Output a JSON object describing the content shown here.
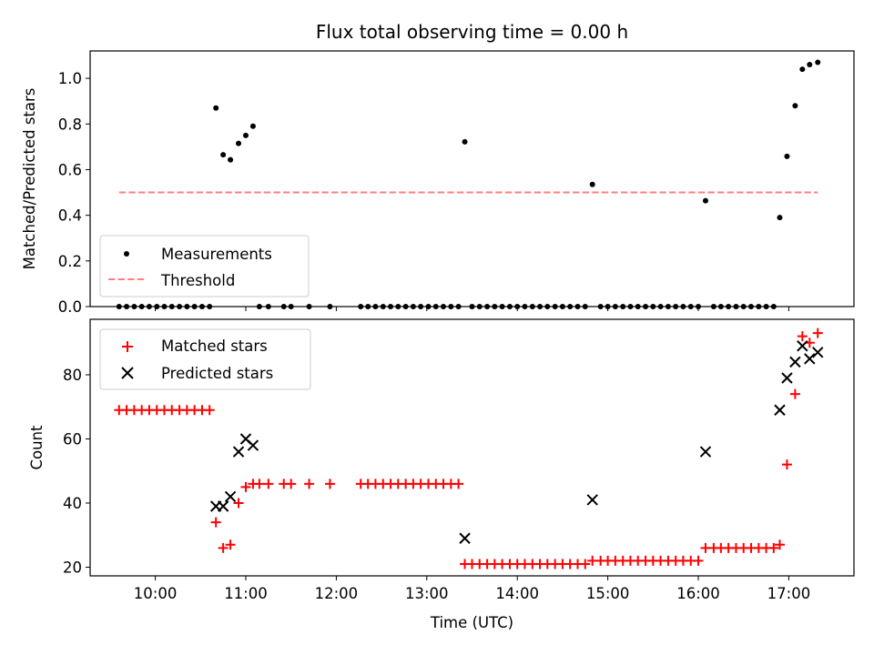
{
  "chart_data": [
    {
      "type": "scatter",
      "title": "Flux total observing time = 0.00 h",
      "xlabel": "",
      "ylabel": "Matched/Predicted stars",
      "xlim": [
        9.28,
        17.72
      ],
      "ylim": [
        0.0,
        1.12
      ],
      "yticks": [
        0.0,
        0.2,
        0.4,
        0.6,
        0.8,
        1.0
      ],
      "ytick_labels": [
        "0.0",
        "0.2",
        "0.4",
        "0.6",
        "0.8",
        "1.0"
      ],
      "legend_position": "lower-left",
      "series": [
        {
          "name": "Measurements",
          "marker": "dot",
          "color": "#000000",
          "points": [
            [
              9.6,
              0
            ],
            [
              9.683,
              0
            ],
            [
              9.767,
              0
            ],
            [
              9.85,
              0
            ],
            [
              9.933,
              0
            ],
            [
              10.017,
              0
            ],
            [
              10.1,
              0
            ],
            [
              10.183,
              0
            ],
            [
              10.267,
              0
            ],
            [
              10.35,
              0
            ],
            [
              10.433,
              0
            ],
            [
              10.517,
              0
            ],
            [
              10.6,
              0
            ],
            [
              10.67,
              0.87
            ],
            [
              10.75,
              0.665
            ],
            [
              10.83,
              0.643
            ],
            [
              10.92,
              0.715
            ],
            [
              11.0,
              0.75
            ],
            [
              11.08,
              0.79
            ],
            [
              11.15,
              0
            ],
            [
              11.25,
              0
            ],
            [
              11.42,
              0
            ],
            [
              11.5,
              0
            ],
            [
              11.7,
              0
            ],
            [
              11.93,
              0
            ],
            [
              12.27,
              0
            ],
            [
              12.35,
              0
            ],
            [
              12.433,
              0
            ],
            [
              12.517,
              0
            ],
            [
              12.6,
              0
            ],
            [
              12.683,
              0
            ],
            [
              12.767,
              0
            ],
            [
              12.85,
              0
            ],
            [
              12.933,
              0
            ],
            [
              13.017,
              0
            ],
            [
              13.1,
              0
            ],
            [
              13.183,
              0
            ],
            [
              13.267,
              0
            ],
            [
              13.35,
              0
            ],
            [
              13.42,
              0.722
            ],
            [
              13.5,
              0
            ],
            [
              13.583,
              0
            ],
            [
              13.667,
              0
            ],
            [
              13.75,
              0
            ],
            [
              13.833,
              0
            ],
            [
              13.917,
              0
            ],
            [
              14.0,
              0
            ],
            [
              14.083,
              0
            ],
            [
              14.167,
              0
            ],
            [
              14.25,
              0
            ],
            [
              14.333,
              0
            ],
            [
              14.417,
              0
            ],
            [
              14.5,
              0
            ],
            [
              14.583,
              0
            ],
            [
              14.667,
              0
            ],
            [
              14.75,
              0
            ],
            [
              14.83,
              0.535
            ],
            [
              14.92,
              0
            ],
            [
              15.0,
              0
            ],
            [
              15.083,
              0
            ],
            [
              15.167,
              0
            ],
            [
              15.25,
              0
            ],
            [
              15.333,
              0
            ],
            [
              15.417,
              0
            ],
            [
              15.5,
              0
            ],
            [
              15.583,
              0
            ],
            [
              15.667,
              0
            ],
            [
              15.75,
              0
            ],
            [
              15.833,
              0
            ],
            [
              15.917,
              0
            ],
            [
              16.0,
              0
            ],
            [
              16.08,
              0.464
            ],
            [
              16.17,
              0
            ],
            [
              16.25,
              0
            ],
            [
              16.333,
              0
            ],
            [
              16.417,
              0
            ],
            [
              16.5,
              0
            ],
            [
              16.583,
              0
            ],
            [
              16.667,
              0
            ],
            [
              16.75,
              0
            ],
            [
              16.833,
              0
            ],
            [
              16.9,
              0.39
            ],
            [
              16.98,
              0.658
            ],
            [
              17.07,
              0.88
            ],
            [
              17.15,
              1.04
            ],
            [
              17.23,
              1.06
            ],
            [
              17.32,
              1.07
            ]
          ]
        },
        {
          "name": "Threshold",
          "line_style": "dashed",
          "color": "#ff7f7f",
          "x": [
            9.6,
            17.32
          ],
          "y": [
            0.5,
            0.5
          ]
        }
      ]
    },
    {
      "type": "scatter",
      "title": "",
      "xlabel": "Time (UTC)",
      "ylabel": "Count",
      "xlim": [
        9.28,
        17.72
      ],
      "ylim": [
        17.3,
        97.3
      ],
      "xticks": [
        10,
        11,
        12,
        13,
        14,
        15,
        16,
        17
      ],
      "xtick_labels": [
        "10:00",
        "11:00",
        "12:00",
        "13:00",
        "14:00",
        "15:00",
        "16:00",
        "17:00"
      ],
      "yticks": [
        20,
        40,
        60,
        80
      ],
      "ytick_labels": [
        "20",
        "40",
        "60",
        "80"
      ],
      "legend_position": "top-left",
      "series": [
        {
          "name": "Matched stars",
          "marker": "plus",
          "color": "#ff0000",
          "points": [
            [
              9.6,
              69
            ],
            [
              9.683,
              69
            ],
            [
              9.767,
              69
            ],
            [
              9.85,
              69
            ],
            [
              9.933,
              69
            ],
            [
              10.017,
              69
            ],
            [
              10.1,
              69
            ],
            [
              10.183,
              69
            ],
            [
              10.267,
              69
            ],
            [
              10.35,
              69
            ],
            [
              10.433,
              69
            ],
            [
              10.517,
              69
            ],
            [
              10.6,
              69
            ],
            [
              10.67,
              34
            ],
            [
              10.75,
              26
            ],
            [
              10.83,
              27
            ],
            [
              10.92,
              40
            ],
            [
              11.0,
              45
            ],
            [
              11.08,
              46
            ],
            [
              11.15,
              46
            ],
            [
              11.25,
              46
            ],
            [
              11.42,
              46
            ],
            [
              11.5,
              46
            ],
            [
              11.7,
              46
            ],
            [
              11.93,
              46
            ],
            [
              12.27,
              46
            ],
            [
              12.35,
              46
            ],
            [
              12.433,
              46
            ],
            [
              12.517,
              46
            ],
            [
              12.6,
              46
            ],
            [
              12.683,
              46
            ],
            [
              12.767,
              46
            ],
            [
              12.85,
              46
            ],
            [
              12.933,
              46
            ],
            [
              13.017,
              46
            ],
            [
              13.1,
              46
            ],
            [
              13.183,
              46
            ],
            [
              13.267,
              46
            ],
            [
              13.35,
              46
            ],
            [
              13.42,
              21
            ],
            [
              13.5,
              21
            ],
            [
              13.583,
              21
            ],
            [
              13.667,
              21
            ],
            [
              13.75,
              21
            ],
            [
              13.833,
              21
            ],
            [
              13.917,
              21
            ],
            [
              14.0,
              21
            ],
            [
              14.083,
              21
            ],
            [
              14.167,
              21
            ],
            [
              14.25,
              21
            ],
            [
              14.333,
              21
            ],
            [
              14.417,
              21
            ],
            [
              14.5,
              21
            ],
            [
              14.583,
              21
            ],
            [
              14.667,
              21
            ],
            [
              14.75,
              21
            ],
            [
              14.83,
              22
            ],
            [
              14.92,
              22
            ],
            [
              15.0,
              22
            ],
            [
              15.083,
              22
            ],
            [
              15.167,
              22
            ],
            [
              15.25,
              22
            ],
            [
              15.333,
              22
            ],
            [
              15.417,
              22
            ],
            [
              15.5,
              22
            ],
            [
              15.583,
              22
            ],
            [
              15.667,
              22
            ],
            [
              15.75,
              22
            ],
            [
              15.833,
              22
            ],
            [
              15.917,
              22
            ],
            [
              16.0,
              22
            ],
            [
              16.08,
              26
            ],
            [
              16.17,
              26
            ],
            [
              16.25,
              26
            ],
            [
              16.333,
              26
            ],
            [
              16.417,
              26
            ],
            [
              16.5,
              26
            ],
            [
              16.583,
              26
            ],
            [
              16.667,
              26
            ],
            [
              16.75,
              26
            ],
            [
              16.833,
              26
            ],
            [
              16.9,
              27
            ],
            [
              16.98,
              52
            ],
            [
              17.07,
              74
            ],
            [
              17.15,
              92
            ],
            [
              17.23,
              90
            ],
            [
              17.32,
              93
            ]
          ]
        },
        {
          "name": "Predicted stars",
          "marker": "x",
          "color": "#000000",
          "points": [
            [
              10.67,
              39
            ],
            [
              10.75,
              39
            ],
            [
              10.83,
              42
            ],
            [
              10.92,
              56
            ],
            [
              11.0,
              60
            ],
            [
              11.08,
              58
            ],
            [
              13.42,
              29
            ],
            [
              14.83,
              41
            ],
            [
              16.08,
              56
            ],
            [
              16.9,
              69
            ],
            [
              16.98,
              79
            ],
            [
              17.07,
              84
            ],
            [
              17.15,
              89
            ],
            [
              17.23,
              85
            ],
            [
              17.32,
              87
            ]
          ]
        }
      ]
    }
  ]
}
